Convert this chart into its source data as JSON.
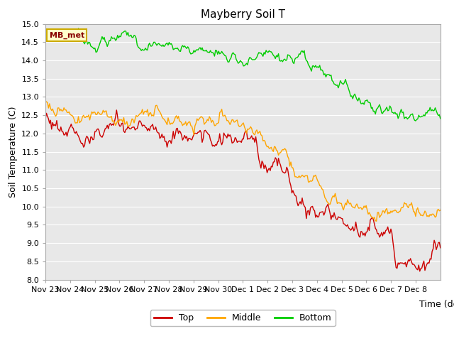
{
  "title": "Mayberry Soil T",
  "xlabel": "Time (dd)",
  "ylabel": "Soil Temperature (C)",
  "ylim": [
    8.0,
    15.0
  ],
  "yticks": [
    8.0,
    8.5,
    9.0,
    9.5,
    10.0,
    10.5,
    11.0,
    11.5,
    12.0,
    12.5,
    13.0,
    13.5,
    14.0,
    14.5,
    15.0
  ],
  "n_days": 16,
  "day_labels": [
    "Nov 23",
    "Nov 24",
    "Nov 25",
    "Nov 26",
    "Nov 27",
    "Nov 28",
    "Nov 29",
    "Nov 30",
    "Dec 1",
    "Dec 2",
    "Dec 3",
    "Dec 4",
    "Dec 5",
    "Dec 6",
    "Dec 7",
    "Dec 8"
  ],
  "line_colors": {
    "top": "#cc0000",
    "middle": "#ffa500",
    "bottom": "#00cc00"
  },
  "line_width": 1.0,
  "fig_bg_color": "#ffffff",
  "plot_bg_color": "#e8e8e8",
  "legend_label": "MB_met",
  "legend_bg": "#ffffcc",
  "legend_border": "#ccaa00",
  "title_fontsize": 11,
  "axis_label_fontsize": 9,
  "tick_fontsize": 8
}
